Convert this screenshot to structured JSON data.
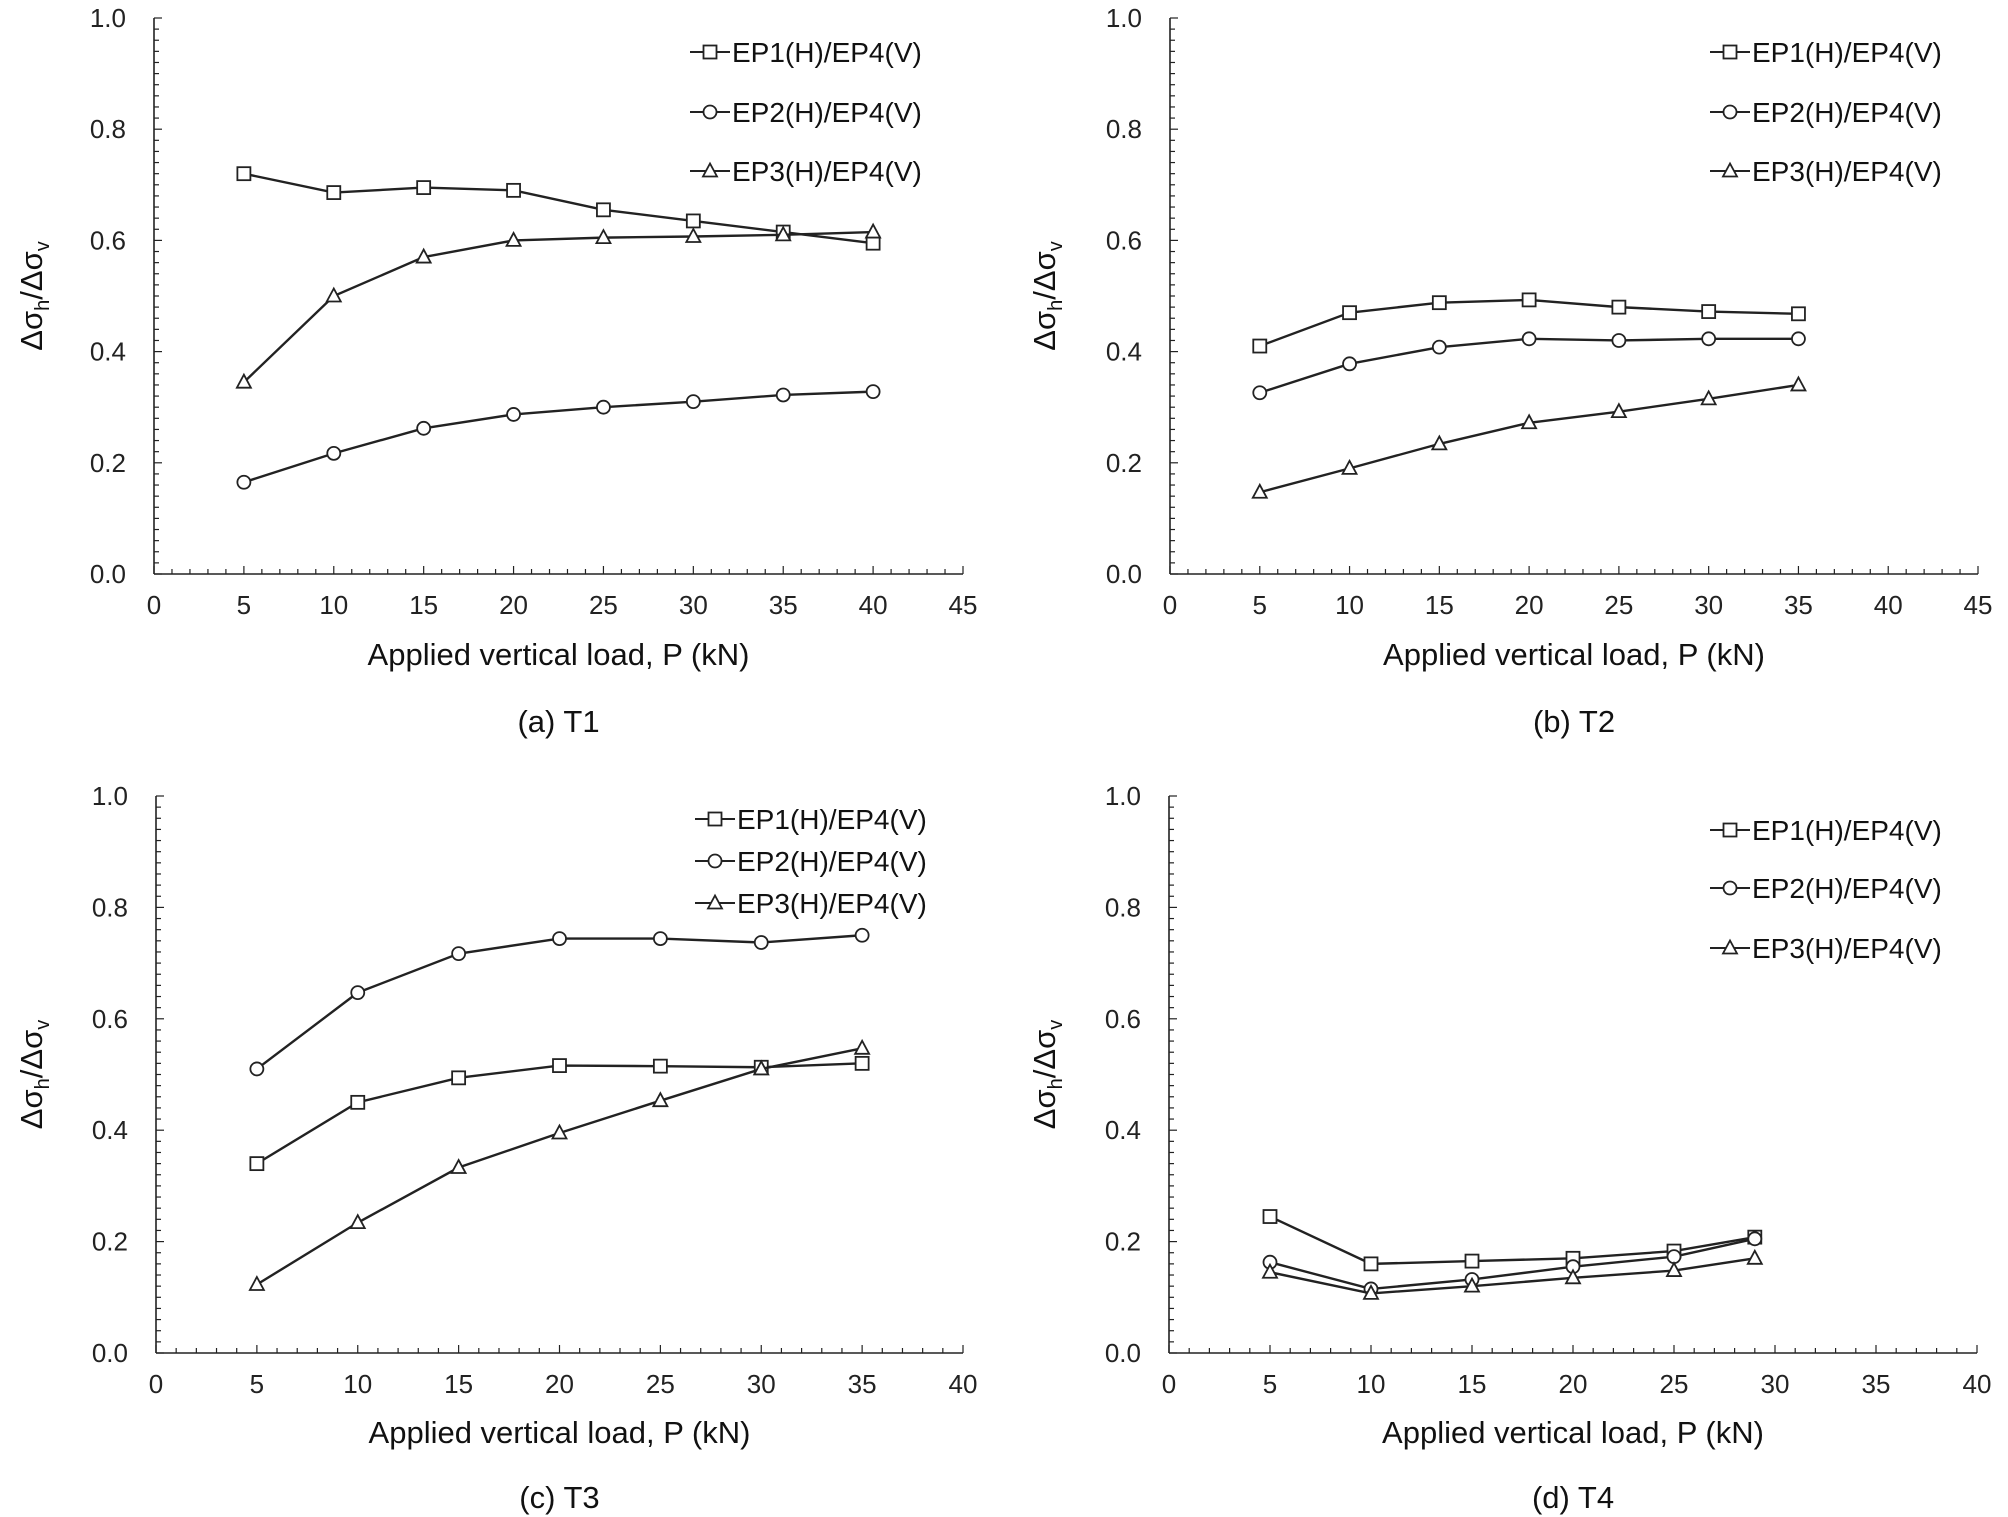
{
  "chart_data": [
    {
      "type": "line",
      "caption": "(a) T1",
      "xlabel": "Applied vertical load, P (kN)",
      "ylabel": {
        "symbol": "Δσ",
        "num_sub": "h",
        "den_sub": "v",
        "slash": "/"
      },
      "xlim": [
        0,
        45
      ],
      "ylim": [
        0,
        1.0
      ],
      "xticks": [
        "0",
        "5",
        "10",
        "15",
        "20",
        "25",
        "30",
        "35",
        "40",
        "45"
      ],
      "yticks": [
        "0.0",
        "0.2",
        "0.4",
        "0.6",
        "0.8",
        "1.0"
      ],
      "grid": false,
      "legend": "top-right",
      "series": [
        {
          "name": "EP1(H)/EP4(V)",
          "marker": "square",
          "x": [
            5,
            10,
            15,
            20,
            25,
            30,
            35,
            40
          ],
          "y": [
            0.72,
            0.686,
            0.695,
            0.69,
            0.655,
            0.635,
            0.615,
            0.595
          ]
        },
        {
          "name": "EP2(H)/EP4(V)",
          "marker": "circle",
          "x": [
            5,
            10,
            15,
            20,
            25,
            30,
            35,
            40
          ],
          "y": [
            0.165,
            0.217,
            0.262,
            0.287,
            0.3,
            0.31,
            0.322,
            0.328
          ]
        },
        {
          "name": "EP3(H)/EP4(V)",
          "marker": "triangle",
          "x": [
            5,
            10,
            15,
            20,
            25,
            30,
            35,
            40
          ],
          "y": [
            0.345,
            0.5,
            0.57,
            0.6,
            0.605,
            0.607,
            0.61,
            0.615
          ]
        }
      ]
    },
    {
      "type": "line",
      "caption": "(b) T2",
      "xlabel": "Applied vertical load, P (kN)",
      "ylabel": {
        "symbol": "Δσ",
        "num_sub": "h",
        "den_sub": "v",
        "slash": "/"
      },
      "xlim": [
        0,
        45
      ],
      "ylim": [
        0,
        1.0
      ],
      "xticks": [
        "0",
        "5",
        "10",
        "15",
        "20",
        "25",
        "30",
        "35",
        "40",
        "45"
      ],
      "yticks": [
        "0.0",
        "0.2",
        "0.4",
        "0.6",
        "0.8",
        "1.0"
      ],
      "grid": false,
      "legend": "top-right",
      "series": [
        {
          "name": "EP1(H)/EP4(V)",
          "marker": "square",
          "x": [
            5,
            10,
            15,
            20,
            25,
            30,
            35
          ],
          "y": [
            0.41,
            0.47,
            0.488,
            0.493,
            0.48,
            0.472,
            0.468
          ]
        },
        {
          "name": "EP2(H)/EP4(V)",
          "marker": "circle",
          "x": [
            5,
            10,
            15,
            20,
            25,
            30,
            35
          ],
          "y": [
            0.326,
            0.378,
            0.408,
            0.423,
            0.42,
            0.423,
            0.423
          ]
        },
        {
          "name": "EP3(H)/EP4(V)",
          "marker": "triangle",
          "x": [
            5,
            10,
            15,
            20,
            25,
            30,
            35
          ],
          "y": [
            0.147,
            0.19,
            0.234,
            0.272,
            0.292,
            0.315,
            0.34
          ]
        }
      ]
    },
    {
      "type": "line",
      "caption": "(c) T3",
      "xlabel": "Applied vertical load, P (kN)",
      "ylabel": {
        "symbol": "Δσ",
        "num_sub": "h",
        "den_sub": "v",
        "slash": "/"
      },
      "xlim": [
        0,
        40
      ],
      "ylim": [
        0,
        1.0
      ],
      "xticks": [
        "0",
        "5",
        "10",
        "15",
        "20",
        "25",
        "30",
        "35",
        "40"
      ],
      "yticks": [
        "0.0",
        "0.2",
        "0.4",
        "0.6",
        "0.8",
        "1.0"
      ],
      "grid": false,
      "legend": "top-right",
      "series": [
        {
          "name": "EP1(H)/EP4(V)",
          "marker": "square",
          "x": [
            5,
            10,
            15,
            20,
            25,
            30,
            35
          ],
          "y": [
            0.34,
            0.45,
            0.494,
            0.516,
            0.515,
            0.513,
            0.52
          ]
        },
        {
          "name": "EP2(H)/EP4(V)",
          "marker": "circle",
          "x": [
            5,
            10,
            15,
            20,
            25,
            30,
            35
          ],
          "y": [
            0.51,
            0.647,
            0.717,
            0.744,
            0.744,
            0.737,
            0.75
          ]
        },
        {
          "name": "EP3(H)/EP4(V)",
          "marker": "triangle",
          "x": [
            5,
            10,
            15,
            20,
            25,
            30,
            35
          ],
          "y": [
            0.123,
            0.234,
            0.333,
            0.395,
            0.453,
            0.51,
            0.547
          ]
        }
      ]
    },
    {
      "type": "line",
      "caption": "(d) T4",
      "xlabel": "Applied vertical load, P (kN)",
      "ylabel": {
        "symbol": "Δσ",
        "num_sub": "h",
        "den_sub": "v",
        "slash": "/"
      },
      "xlim": [
        0,
        40
      ],
      "ylim": [
        0,
        1.0
      ],
      "xticks": [
        "0",
        "5",
        "10",
        "15",
        "20",
        "25",
        "30",
        "35",
        "40"
      ],
      "yticks": [
        "0.0",
        "0.2",
        "0.4",
        "0.6",
        "0.8",
        "1.0"
      ],
      "grid": false,
      "legend": "top-right",
      "series": [
        {
          "name": "EP1(H)/EP4(V)",
          "marker": "square",
          "x": [
            5,
            10,
            15,
            20,
            25,
            29
          ],
          "y": [
            0.245,
            0.16,
            0.165,
            0.17,
            0.183,
            0.208
          ]
        },
        {
          "name": "EP2(H)/EP4(V)",
          "marker": "circle",
          "x": [
            5,
            10,
            15,
            20,
            25,
            29
          ],
          "y": [
            0.163,
            0.115,
            0.132,
            0.155,
            0.173,
            0.205
          ]
        },
        {
          "name": "EP3(H)/EP4(V)",
          "marker": "triangle",
          "x": [
            5,
            10,
            15,
            20,
            25,
            29
          ],
          "y": [
            0.145,
            0.107,
            0.12,
            0.135,
            0.148,
            0.17
          ]
        }
      ]
    }
  ]
}
